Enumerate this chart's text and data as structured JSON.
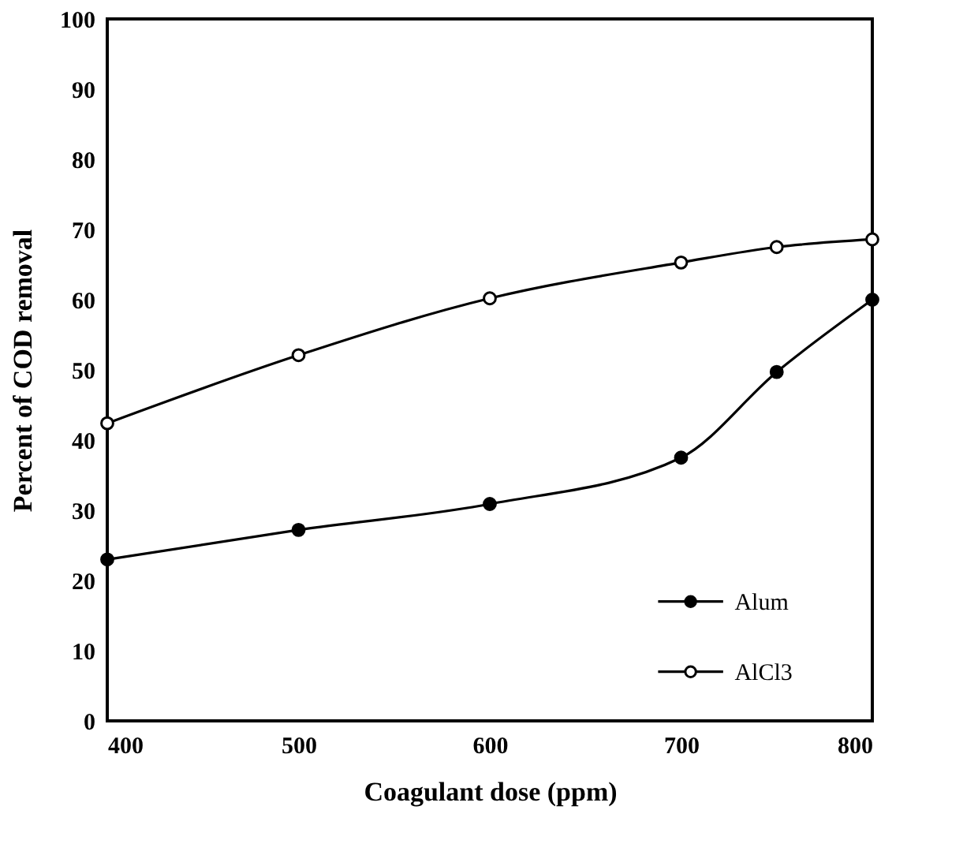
{
  "chart_data": {
    "type": "line",
    "xlabel": "Coagulant dose (ppm)",
    "ylabel": "Percent of COD removal",
    "x": [
      400,
      500,
      600,
      700,
      750,
      800
    ],
    "series": [
      {
        "name": "Alum",
        "color": "#000000",
        "marker": "circle",
        "values": [
          23,
          27.2,
          30.9,
          37.5,
          49.7,
          60
        ]
      },
      {
        "name": "AlCl3",
        "color": "#000000",
        "marker": "circle",
        "values": [
          42.4,
          52.1,
          60.2,
          65.3,
          67.5,
          68.6
        ]
      }
    ],
    "xlim": [
      400,
      800
    ],
    "xticks": [
      400,
      500,
      600,
      700,
      800
    ],
    "ylim": [
      0,
      100
    ],
    "yticks": [
      0,
      10,
      20,
      30,
      40,
      50,
      60,
      70,
      80,
      90,
      100
    ],
    "grid": false,
    "legend": "bottom right",
    "line_style": "solid"
  }
}
